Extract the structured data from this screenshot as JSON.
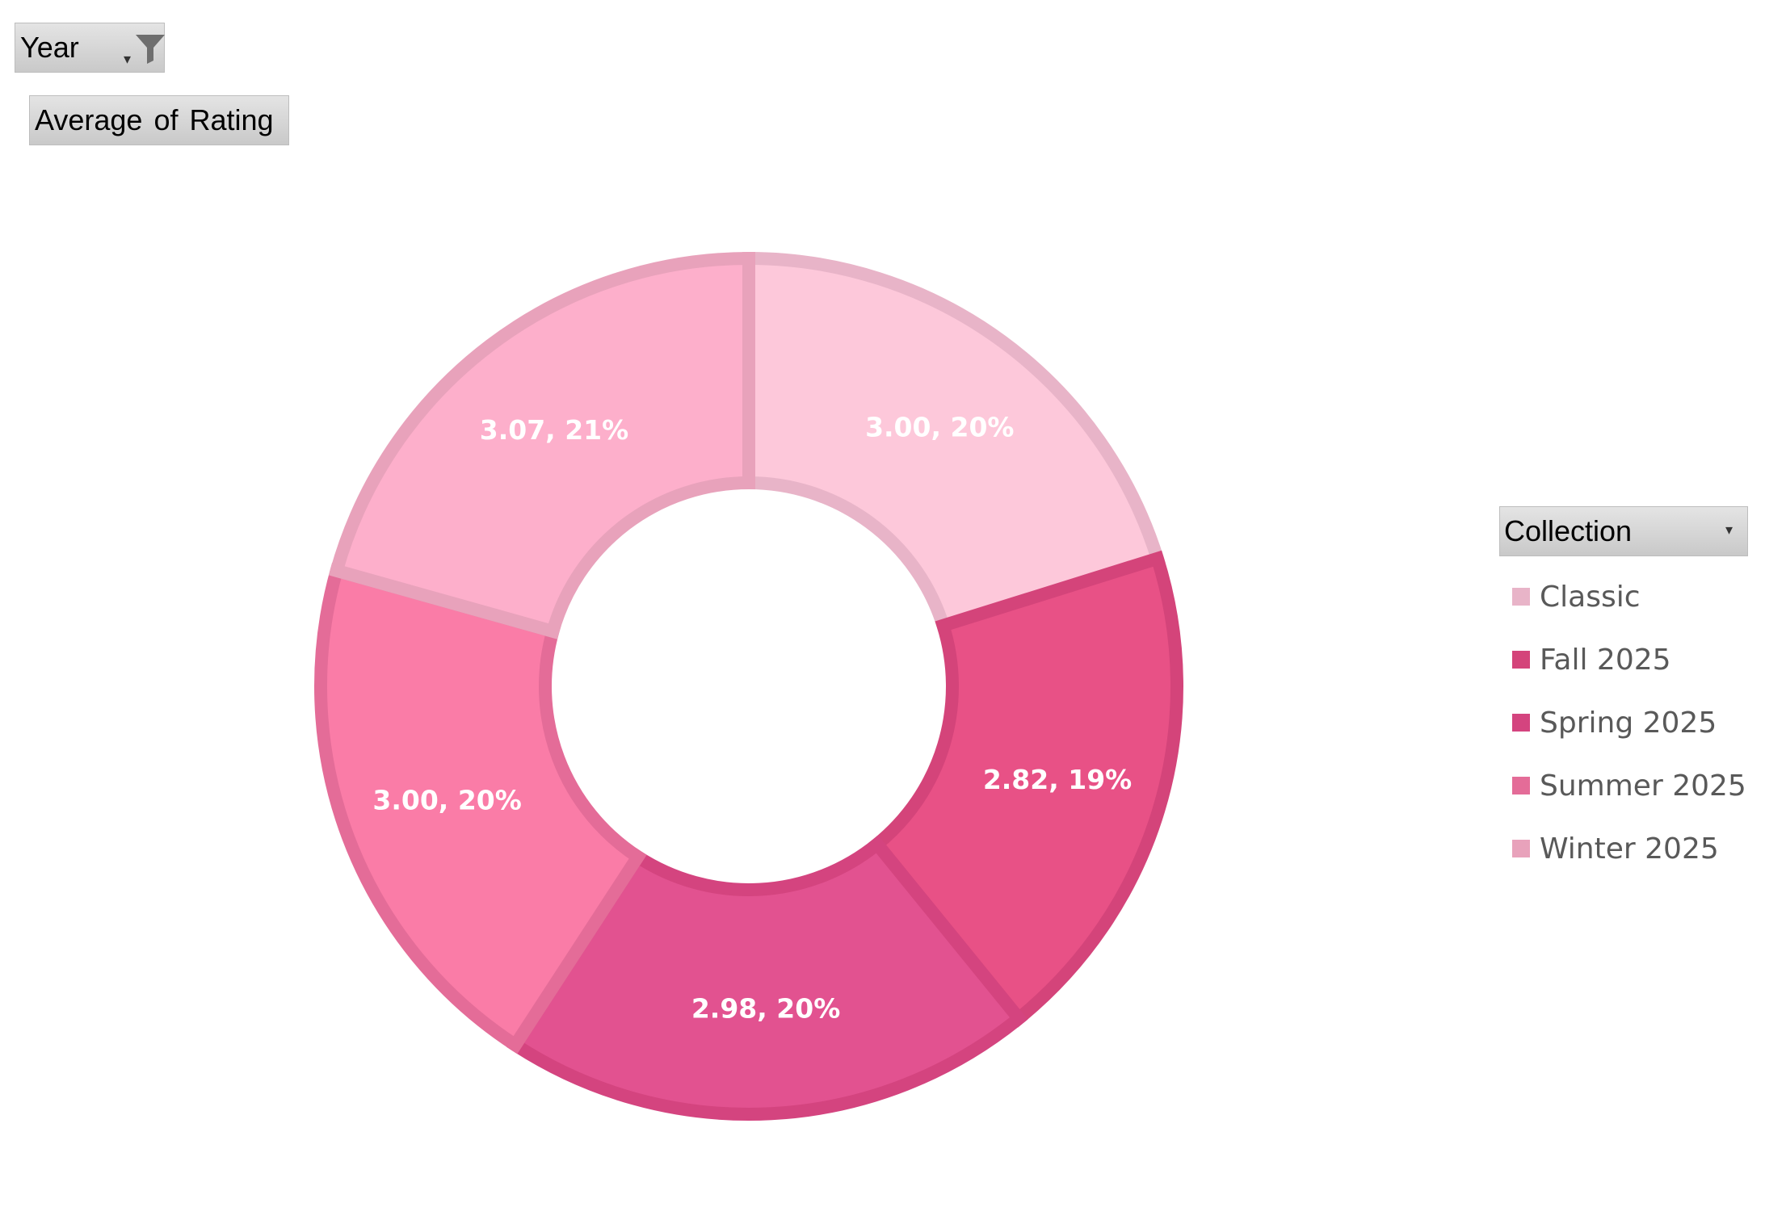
{
  "filter_button": {
    "label": "Year",
    "caret_icon": "dropdown-caret-icon",
    "filter_icon": "funnel-filter-icon"
  },
  "measure_button": {
    "label": "Average of Rating"
  },
  "legend": {
    "field_label": "Collection",
    "caret_icon": "dropdown-caret-icon"
  },
  "chart_data": {
    "type": "doughnut",
    "title": "",
    "legend_position": "right",
    "series": [
      {
        "name": "Average of Rating",
        "slices": [
          {
            "category": "Classic",
            "value": 3.0,
            "percent_label": "20%",
            "label": "3.00, 20%",
            "color": "#fdc8da",
            "border": "#e8b4c8"
          },
          {
            "category": "Fall 2025",
            "value": 2.82,
            "percent_label": "19%",
            "label": "2.82, 19%",
            "color": "#e85186",
            "border": "#d4447a"
          },
          {
            "category": "Spring 2025",
            "value": 2.98,
            "percent_label": "20%",
            "label": "2.98, 20%",
            "color": "#e25290",
            "border": "#d4447f"
          },
          {
            "category": "Summer 2025",
            "value": 3.0,
            "percent_label": "20%",
            "label": "3.00, 20%",
            "color": "#fa7ca7",
            "border": "#e46c98"
          },
          {
            "category": "Winter 2025",
            "value": 3.07,
            "percent_label": "21%",
            "label": "3.07, 21%",
            "color": "#fdafcb",
            "border": "#e8a2bb"
          }
        ]
      }
    ]
  }
}
